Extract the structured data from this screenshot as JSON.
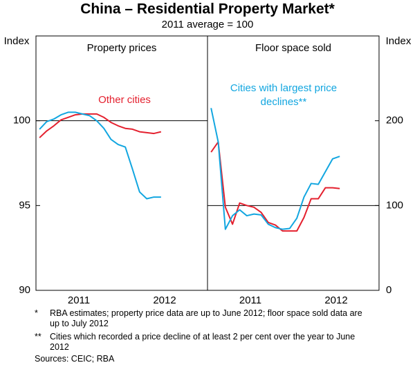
{
  "title": "China – Residential Property Market*",
  "subtitle": "2011 average = 100",
  "notes": [
    {
      "mark": "*",
      "text": "RBA estimates; property price data are up to June 2012; floor space sold data are up to July 2012"
    },
    {
      "mark": "**",
      "text": "Cities which recorded a price decline of at least 2 per cent over the year to June 2012"
    }
  ],
  "sources": "Sources: CEIC; RBA",
  "chart_data": [
    {
      "type": "line",
      "title": "Property prices",
      "y_label": "Index",
      "y_axis_side": "left",
      "categories": [
        null,
        null,
        null,
        null,
        null,
        "2011",
        null,
        null,
        null,
        null,
        null,
        null,
        null,
        null,
        null,
        null,
        null,
        "2012",
        null,
        null,
        null,
        null,
        null,
        null
      ],
      "ylim": [
        90,
        105
      ],
      "yticks": [
        90,
        95,
        100
      ],
      "reference_line": 100,
      "series": [
        {
          "name": "Other cities",
          "color": "#e4202e",
          "values": [
            99.0,
            99.4,
            99.7,
            100.05,
            100.2,
            100.35,
            100.4,
            100.4,
            100.4,
            100.2,
            99.9,
            99.7,
            99.55,
            99.5,
            99.35,
            99.3,
            99.25,
            99.35,
            null,
            null,
            null,
            null,
            null,
            null
          ]
        },
        {
          "color": "#12a6e0",
          "values": [
            99.5,
            99.95,
            100.1,
            100.35,
            100.5,
            100.5,
            100.4,
            100.3,
            100.0,
            99.55,
            98.9,
            98.6,
            98.45,
            97.15,
            95.8,
            95.4,
            95.5,
            95.5,
            null,
            null,
            null,
            null,
            null,
            null
          ]
        }
      ]
    },
    {
      "type": "line",
      "title": "Floor space sold",
      "y_label": "Index",
      "y_axis_side": "right",
      "categories": [
        null,
        null,
        null,
        null,
        null,
        "2011",
        null,
        null,
        null,
        null,
        null,
        null,
        null,
        null,
        null,
        null,
        null,
        "2012",
        null,
        null,
        null,
        null,
        null,
        null
      ],
      "ylim": [
        0,
        300
      ],
      "yticks": [
        0,
        100,
        200
      ],
      "reference_line": 100,
      "series": [
        {
          "color": "#e4202e",
          "values": [
            163,
            175,
            98,
            78,
            103,
            100,
            98,
            92,
            80,
            77,
            70,
            70,
            70,
            86,
            108,
            108,
            121,
            121,
            120,
            null,
            null,
            null,
            null,
            null
          ]
        },
        {
          "name": "Cities with largest price declines**",
          "color": "#12a6e0",
          "values": [
            215,
            175,
            72,
            88,
            95,
            88,
            90,
            89,
            78,
            74,
            72,
            73,
            85,
            110,
            126,
            125,
            140,
            155,
            158,
            null,
            null,
            null,
            null,
            null
          ]
        }
      ]
    }
  ]
}
